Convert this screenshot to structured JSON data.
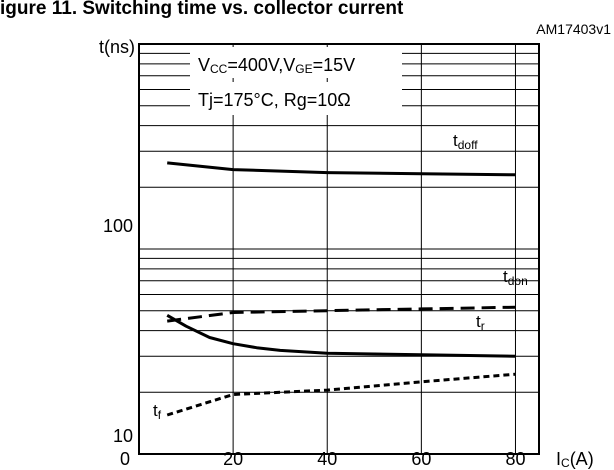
{
  "heading": "igure 11. Switching time vs. collector current",
  "figure_code": "AM17403v1",
  "conditions": {
    "line1": {
      "v1": "V",
      "v1_sub": "CC",
      "v1_rest": "=400V,V",
      "v2_sub": "GE",
      "v2_rest": "=15V"
    },
    "line2": "Tj=175°C, Rg=10Ω"
  },
  "axes": {
    "ylabel": "t(ns)",
    "xlabel_main": "I",
    "xlabel_sub": "C",
    "xlabel_unit": "(A)",
    "xticks": [
      "0",
      "20",
      "40",
      "60",
      "80"
    ],
    "yticks": [
      "10",
      "100"
    ]
  },
  "labels": {
    "tdoff": {
      "main": "t",
      "sub": "doff"
    },
    "tdon": {
      "main": "t",
      "sub": "don"
    },
    "tr": {
      "main": "t",
      "sub": "r"
    },
    "tf": {
      "main": "t",
      "sub": "f"
    }
  },
  "chart_data": {
    "type": "line",
    "title": "",
    "xlabel": "IC(A)",
    "ylabel": "t(ns)",
    "x_range": [
      0,
      85
    ],
    "y_range": [
      10,
      1000
    ],
    "y_scale": "log",
    "grid": true,
    "series": [
      {
        "name": "tdoff",
        "style": "solid",
        "x": [
          6,
          20,
          40,
          60,
          80
        ],
        "y": [
          263,
          244,
          236,
          233,
          230
        ]
      },
      {
        "name": "tdon",
        "style": "dashed",
        "x": [
          6,
          20,
          40,
          60,
          80
        ],
        "y": [
          44.5,
          49,
          50,
          51,
          52
        ]
      },
      {
        "name": "tr",
        "style": "solid",
        "x": [
          6,
          10,
          15,
          20,
          25,
          30,
          40,
          60,
          80
        ],
        "y": [
          47.5,
          42,
          37,
          34.5,
          33,
          32,
          31,
          30.5,
          30
        ]
      },
      {
        "name": "tf",
        "style": "dotted",
        "x": [
          6,
          20,
          40,
          60,
          80
        ],
        "y": [
          15.5,
          19.5,
          20.5,
          22.5,
          24.5
        ]
      }
    ]
  }
}
